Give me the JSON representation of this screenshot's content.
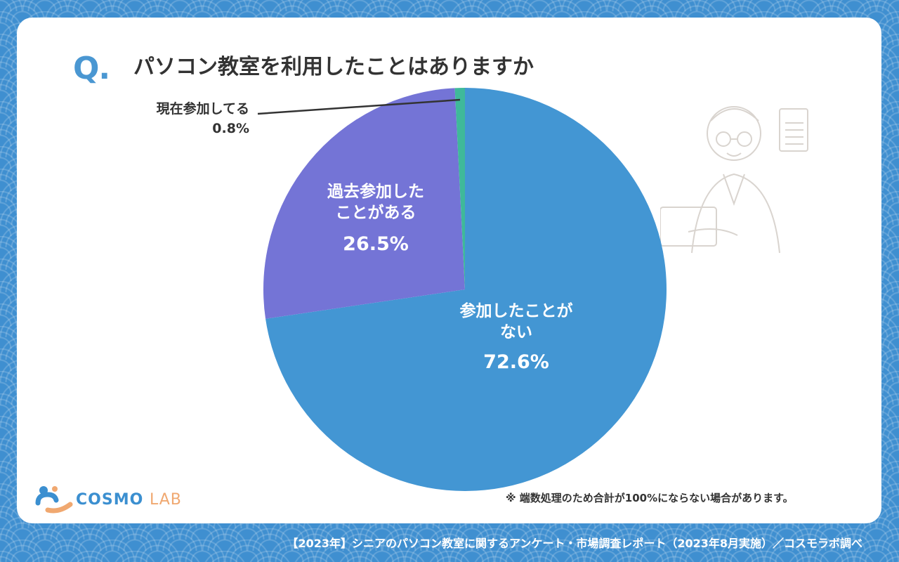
{
  "header": {
    "q_mark": "Q.",
    "title": "パソコン教室を利用したことはありますか"
  },
  "chart_data": {
    "type": "pie",
    "title": "パソコン教室を利用したことはありますか",
    "start_angle_deg": 0,
    "direction": "clockwise",
    "slices": [
      {
        "label": "参加したことがない",
        "label_lines": [
          "参加したことが",
          "ない"
        ],
        "value": 72.6,
        "value_text": "72.6%",
        "color": "#4396d3"
      },
      {
        "label": "過去参加したことがある",
        "label_lines": [
          "過去参加した",
          "ことがある"
        ],
        "value": 26.5,
        "value_text": "26.5%",
        "color": "#7474d6"
      },
      {
        "label": "現在参加してる",
        "label_lines": [
          "現在参加してる"
        ],
        "value": 0.8,
        "value_text": "0.8%",
        "color": "#3fb99a"
      }
    ]
  },
  "note": "※ 端数処理のため合計が100%にならない場合があります。",
  "logo": {
    "part1": "COSMO",
    "part2": "LAB"
  },
  "footer": "【2023年】シニアのパソコン教室に関するアンケート・市場調査レポート（2023年8月実施）／コスモラボ調べ",
  "colors": {
    "background": "#3f8fd0",
    "accent": "#4a97d2",
    "card": "#ffffff"
  }
}
